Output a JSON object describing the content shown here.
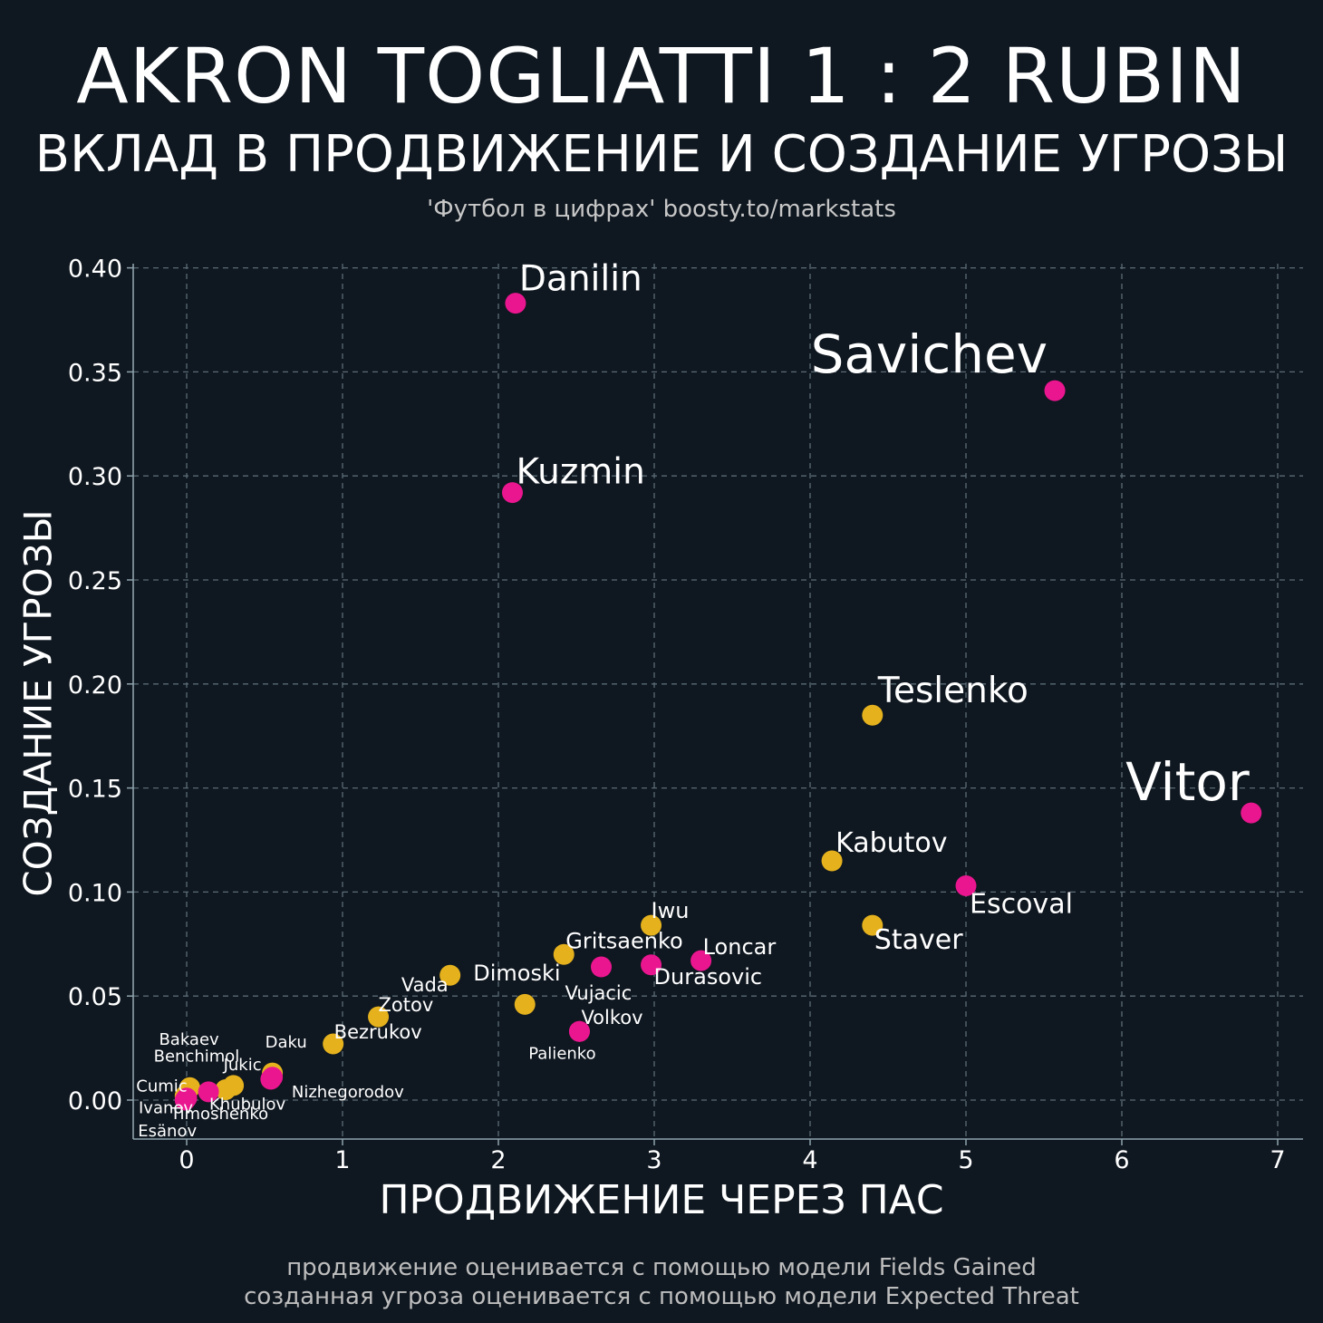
{
  "header": {
    "title": "AKRON TOGLIATTI 1 : 2 RUBIN",
    "subtitle": "ВКЛАД В ПРОДВИЖЕНИЕ И СОЗДАНИЕ УГРОЗЫ",
    "credit": "'Футбол в цифрах' boosty.to/markstats"
  },
  "footer": {
    "note1": "продвижение оценивается с помощью модели Fields Gained",
    "note2": "созданная угроза оценивается с помощью модели Expected Threat"
  },
  "colors": {
    "background": "#0f1720",
    "grid": "#5a6b76",
    "axis": "#8fa3ad",
    "team_yellow": "#e5b21e",
    "team_pink": "#ea168f"
  },
  "chart_data": {
    "type": "scatter",
    "xlabel": "ПРОДВИЖЕНИЕ ЧЕРЕЗ ПАС",
    "ylabel": "СОЗДАНИЕ УГРОЗЫ",
    "xlim": [
      -0.35,
      7.18
    ],
    "ylim": [
      -0.019,
      0.402
    ],
    "xticks": [
      0,
      1,
      2,
      3,
      4,
      5,
      6,
      7
    ],
    "yticks": [
      0.0,
      0.05,
      0.1,
      0.15,
      0.2,
      0.25,
      0.3,
      0.35,
      0.4
    ],
    "ytick_labels": [
      "0.00",
      "0.05",
      "0.10",
      "0.15",
      "0.20",
      "0.25",
      "0.30",
      "0.35",
      "0.40"
    ],
    "grid": true,
    "series": [
      {
        "name": "Akron Togliatti",
        "color": "#e5b21e",
        "points": [
          {
            "label": "Teslenko",
            "x": 4.4,
            "y": 0.185
          },
          {
            "label": "Kabutov",
            "x": 4.14,
            "y": 0.115
          },
          {
            "label": "Staver",
            "x": 4.4,
            "y": 0.084
          },
          {
            "label": "Iwu",
            "x": 2.98,
            "y": 0.084
          },
          {
            "label": "Gritsaenko",
            "x": 2.42,
            "y": 0.07
          },
          {
            "label": "Vada",
            "x": 1.69,
            "y": 0.06
          },
          {
            "label": "Palienko",
            "x": 2.17,
            "y": 0.046
          },
          {
            "label": "Zotov",
            "x": 1.23,
            "y": 0.04
          },
          {
            "label": "Bezrukov",
            "x": 0.94,
            "y": 0.027
          },
          {
            "label": "Daku",
            "x": 0.55,
            "y": 0.013
          },
          {
            "label": "Bakaev",
            "x": 0.02,
            "y": 0.006
          },
          {
            "label": "Jukic",
            "x": 0.3,
            "y": 0.007
          },
          {
            "label": "Khubulov",
            "x": 0.25,
            "y": 0.005
          },
          {
            "label": "Cumic",
            "x": -0.01,
            "y": 0.002
          }
        ]
      },
      {
        "name": "Rubin",
        "color": "#ea168f",
        "points": [
          {
            "label": "Danilin",
            "x": 2.11,
            "y": 0.383
          },
          {
            "label": "Savichev",
            "x": 5.57,
            "y": 0.341
          },
          {
            "label": "Kuzmin",
            "x": 2.09,
            "y": 0.292
          },
          {
            "label": "Vitor",
            "x": 6.83,
            "y": 0.138
          },
          {
            "label": "Escoval",
            "x": 5.0,
            "y": 0.103
          },
          {
            "label": "Loncar",
            "x": 3.3,
            "y": 0.067
          },
          {
            "label": "Dimoski",
            "x": 2.66,
            "y": 0.064
          },
          {
            "label": "Durasovic",
            "x": 2.98,
            "y": 0.065
          },
          {
            "label": "Volkov",
            "x": 2.52,
            "y": 0.033
          },
          {
            "label": "Vujacic",
            "x": 2.52,
            "y": 0.033
          },
          {
            "label": "Nizhegorodov",
            "x": 0.54,
            "y": 0.01
          },
          {
            "label": "Benchimol",
            "x": 0.55,
            "y": 0.011
          },
          {
            "label": "Timoshenko",
            "x": 0.14,
            "y": 0.004
          },
          {
            "label": "Ivanov",
            "x": 0.0,
            "y": 0.001
          },
          {
            "label": "Esänov",
            "x": -0.01,
            "y": 0.0
          }
        ]
      }
    ],
    "annotations": [
      {
        "text": "Danilin",
        "anchor_x": 2.11,
        "anchor_y": 0.383,
        "size": "large"
      },
      {
        "text": "Savichev",
        "anchor_x": 5.57,
        "anchor_y": 0.341,
        "size": "xlarge"
      },
      {
        "text": "Kuzmin",
        "anchor_x": 2.09,
        "anchor_y": 0.292,
        "size": "large"
      },
      {
        "text": "Teslenko",
        "anchor_x": 4.4,
        "anchor_y": 0.185,
        "size": "large"
      },
      {
        "text": "Vitor",
        "anchor_x": 6.83,
        "anchor_y": 0.138,
        "size": "xlarge"
      },
      {
        "text": "Kabutov",
        "anchor_x": 4.14,
        "anchor_y": 0.115,
        "size": "medium"
      },
      {
        "text": "Escoval",
        "anchor_x": 5.0,
        "anchor_y": 0.103,
        "size": "medium"
      },
      {
        "text": "Iwu",
        "anchor_x": 2.98,
        "anchor_y": 0.084,
        "size": "small"
      },
      {
        "text": "Staver",
        "anchor_x": 4.4,
        "anchor_y": 0.084,
        "size": "medium"
      },
      {
        "text": "Gritsaenko",
        "anchor_x": 2.42,
        "anchor_y": 0.07,
        "size": "small"
      },
      {
        "text": "Loncar",
        "anchor_x": 3.3,
        "anchor_y": 0.067,
        "size": "small"
      },
      {
        "text": "Dimoski",
        "anchor_x": 2.66,
        "anchor_y": 0.064,
        "size": "small"
      },
      {
        "text": "Durasovic",
        "anchor_x": 2.98,
        "anchor_y": 0.065,
        "size": "small"
      },
      {
        "text": "Vada",
        "anchor_x": 1.69,
        "anchor_y": 0.06,
        "size": "xsmall"
      },
      {
        "text": "Vujacic",
        "anchor_x": 2.52,
        "anchor_y": 0.033,
        "size": "xsmall"
      },
      {
        "text": "Zotov",
        "anchor_x": 1.23,
        "anchor_y": 0.04,
        "size": "xsmall"
      },
      {
        "text": "Volkov",
        "anchor_x": 2.52,
        "anchor_y": 0.033,
        "size": "xsmall"
      },
      {
        "text": "Bezrukov",
        "anchor_x": 0.94,
        "anchor_y": 0.027,
        "size": "xsmall"
      },
      {
        "text": "Palienko",
        "anchor_x": 2.17,
        "anchor_y": 0.046,
        "size": "tiny"
      },
      {
        "text": "Bakaev",
        "anchor_x": 0.02,
        "anchor_y": 0.006,
        "size": "tiny"
      },
      {
        "text": "Daku",
        "anchor_x": 0.55,
        "anchor_y": 0.013,
        "size": "tiny"
      },
      {
        "text": "Benchimol",
        "anchor_x": 0.55,
        "anchor_y": 0.011,
        "size": "tiny"
      },
      {
        "text": "Jukic",
        "anchor_x": 0.3,
        "anchor_y": 0.007,
        "size": "tiny"
      },
      {
        "text": "Cumic",
        "anchor_x": -0.01,
        "anchor_y": 0.002,
        "size": "tiny"
      },
      {
        "text": "Nizhegorodov",
        "anchor_x": 0.54,
        "anchor_y": 0.01,
        "size": "tiny"
      },
      {
        "text": "Ivanov",
        "anchor_x": 0.0,
        "anchor_y": 0.001,
        "size": "tiny"
      },
      {
        "text": "Khubulov",
        "anchor_x": 0.25,
        "anchor_y": 0.005,
        "size": "tiny"
      },
      {
        "text": "Timoshenko",
        "anchor_x": 0.14,
        "anchor_y": 0.004,
        "size": "tiny"
      },
      {
        "text": "Esänov",
        "anchor_x": -0.01,
        "anchor_y": 0.0,
        "size": "tiny"
      }
    ]
  }
}
